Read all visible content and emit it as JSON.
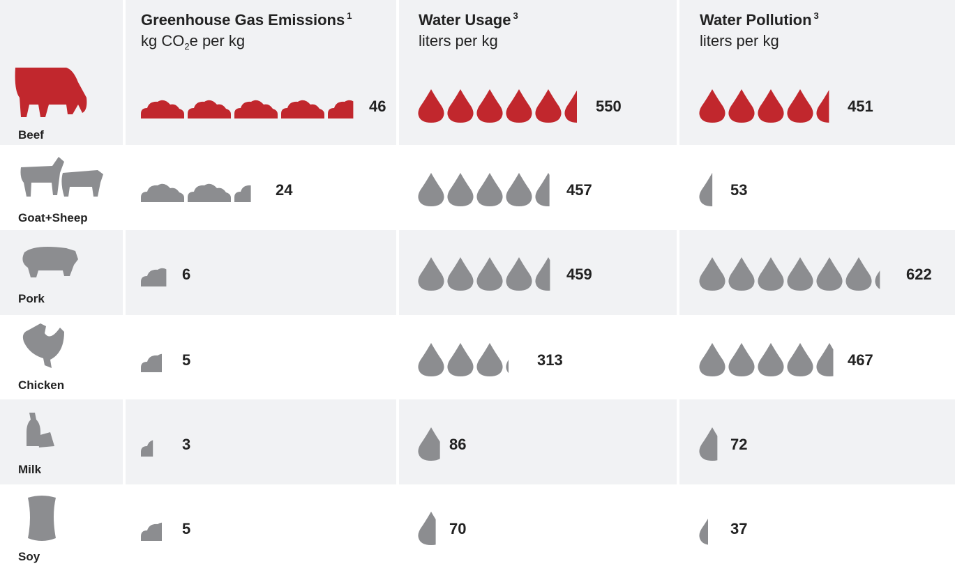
{
  "columns": [
    {
      "title": "Greenhouse Gas Emissions",
      "note": "1",
      "unit_pre": "kg CO",
      "unit_sub": "2",
      "unit_post": "e per kg"
    },
    {
      "title": "Water Usage",
      "note": "3",
      "unit_pre": "liters per kg"
    },
    {
      "title": "Water Pollution",
      "note": "3",
      "unit_pre": "liters per kg"
    }
  ],
  "rows": [
    {
      "label": "Beef",
      "values": [
        46,
        550,
        451
      ],
      "highlight": true
    },
    {
      "label": "Goat+Sheep",
      "values": [
        24,
        457,
        53
      ]
    },
    {
      "label": "Pork",
      "values": [
        6,
        459,
        622
      ]
    },
    {
      "label": "Chicken",
      "values": [
        5,
        313,
        467
      ]
    },
    {
      "label": "Milk",
      "values": [
        3,
        86,
        72
      ]
    },
    {
      "label": "Soy",
      "values": [
        5,
        70,
        37
      ]
    }
  ],
  "colors": {
    "highlight": "#c1272d",
    "default": "#8c8d90"
  }
}
